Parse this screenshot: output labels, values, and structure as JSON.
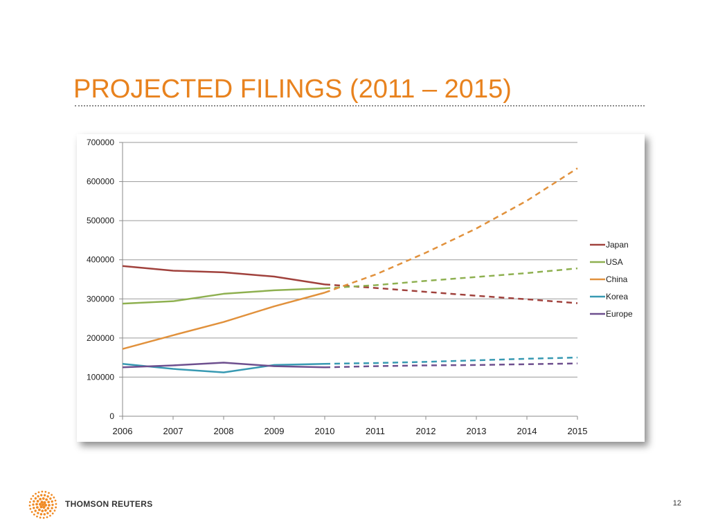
{
  "slide": {
    "title": "PROJECTED FILINGS (2011 – 2015)",
    "title_color": "#E8821E",
    "brand_text": "THOMSON REUTERS",
    "brand_color": "#333333",
    "logo_color": "#F08A24",
    "logo_icon": "thomson-reuters-dot-logo",
    "page_number": "12"
  },
  "chart_data": {
    "type": "line",
    "title": "",
    "xlabel": "",
    "ylabel": "",
    "categories": [
      "2006",
      "2007",
      "2008",
      "2009",
      "2010",
      "2011",
      "2012",
      "2013",
      "2014",
      "2015"
    ],
    "ylim": [
      0,
      700000
    ],
    "yticks": [
      0,
      100000,
      200000,
      300000,
      400000,
      500000,
      600000,
      700000
    ],
    "grid": "horizontal",
    "legend_position": "right",
    "actual_range": [
      "2006",
      "2010"
    ],
    "projected_range": [
      "2010",
      "2015"
    ],
    "series": [
      {
        "name": "Japan",
        "color": "#A0413C",
        "values": [
          384000,
          372000,
          368000,
          357000,
          337000,
          328000,
          318000,
          308000,
          299000,
          289000
        ]
      },
      {
        "name": "USA",
        "color": "#8EB050",
        "values": [
          288000,
          294000,
          313000,
          322000,
          327000,
          335000,
          346000,
          356000,
          366000,
          378000
        ]
      },
      {
        "name": "China",
        "color": "#E1913C",
        "values": [
          172000,
          207000,
          241000,
          281000,
          316000,
          362000,
          418000,
          480000,
          551000,
          634000
        ]
      },
      {
        "name": "Korea",
        "color": "#3799B2",
        "values": [
          134000,
          121000,
          112000,
          131000,
          134000,
          136000,
          139000,
          143000,
          147000,
          150000
        ]
      },
      {
        "name": "Europe",
        "color": "#6D4F8E",
        "values": [
          125000,
          130000,
          137000,
          128000,
          125000,
          128000,
          130000,
          131000,
          133000,
          135000
        ]
      }
    ]
  }
}
